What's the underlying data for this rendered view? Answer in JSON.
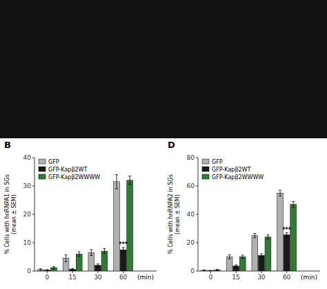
{
  "chart_data": [
    {
      "type": "bar",
      "title": "B",
      "categories": [
        "0",
        "15",
        "30",
        "60"
      ],
      "series": [
        {
          "name": "GFP",
          "color": "#b0b0b0",
          "values": [
            0.5,
            4.5,
            6.5,
            31.5
          ],
          "errors": [
            0.3,
            1.2,
            1.0,
            2.5
          ]
        },
        {
          "name": "GFP-Kapβ2WT",
          "color": "#1a1a1a",
          "values": [
            0.3,
            0.6,
            2.0,
            7.5
          ],
          "errors": [
            0.2,
            0.3,
            0.5,
            0.8
          ]
        },
        {
          "name": "GFP-Kapβ2WWWW",
          "color": "#2e7d32",
          "values": [
            1.2,
            6.0,
            7.0,
            32.0
          ],
          "errors": [
            0.4,
            0.8,
            0.9,
            1.5
          ]
        }
      ],
      "ylabel": "% Cells with hnRNPA1 in SGs\n(mean ± SEM)",
      "xlabel": "(min)",
      "ylim": [
        0,
        40
      ],
      "yticks": [
        0,
        10,
        20,
        30,
        40
      ],
      "legend": "upper left",
      "grid": false,
      "annotations": [
        {
          "text": "***",
          "category": "60",
          "series": "GFP-Kapβ2WT"
        }
      ]
    },
    {
      "type": "bar",
      "title": "D",
      "categories": [
        "0",
        "15",
        "30",
        "60"
      ],
      "series": [
        {
          "name": "GFP",
          "color": "#b0b0b0",
          "values": [
            0.5,
            10.0,
            25.0,
            55.0
          ],
          "errors": [
            0.3,
            1.5,
            1.5,
            2.0
          ]
        },
        {
          "name": "GFP-Kapβ2WT",
          "color": "#1a1a1a",
          "values": [
            0.3,
            3.5,
            11.0,
            25.5
          ],
          "errors": [
            0.2,
            0.8,
            1.2,
            1.5
          ]
        },
        {
          "name": "GFP-Kapβ2WWWW",
          "color": "#2e7d32",
          "values": [
            0.8,
            10.0,
            24.0,
            47.0
          ],
          "errors": [
            0.4,
            1.2,
            1.5,
            2.0
          ]
        }
      ],
      "ylabel": "% Cells with hnRNPA2 in SGs\n(mean ± SEM)",
      "xlabel": "(min)",
      "ylim": [
        0,
        80
      ],
      "yticks": [
        0,
        20,
        40,
        60,
        80
      ],
      "legend": "upper left",
      "grid": false,
      "annotations": [
        {
          "text": "***",
          "category": "60",
          "series": "GFP-Kapβ2WT"
        }
      ]
    }
  ]
}
